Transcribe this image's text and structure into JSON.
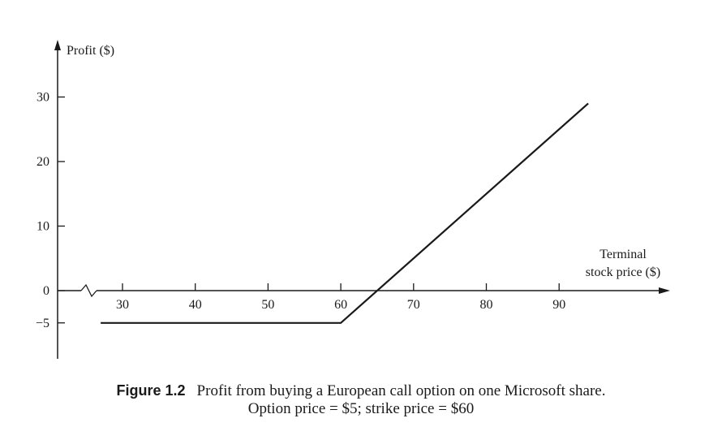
{
  "chart_data": {
    "type": "line",
    "title": "",
    "ylabel": "Profit ($)",
    "xlabel_lines": [
      "Terminal",
      "stock price ($)"
    ],
    "x_ticks": [
      30,
      40,
      50,
      60,
      70,
      80,
      90
    ],
    "y_ticks": [
      30,
      20,
      10,
      0,
      -5
    ],
    "y_tick_labels": [
      "30",
      "20",
      "10",
      "0",
      "−5"
    ],
    "xlim": [
      20,
      100
    ],
    "ylim": [
      -10,
      35
    ],
    "series": [
      {
        "x": [
          27,
          60,
          94
        ],
        "y": [
          -5,
          -5,
          29
        ]
      }
    ],
    "axis_break": true,
    "grid": false
  },
  "caption": {
    "label": "Figure 1.2",
    "line1": "Profit from buying a European call option on one Microsoft share.",
    "line2": "Option price = $5; strike price = $60"
  }
}
